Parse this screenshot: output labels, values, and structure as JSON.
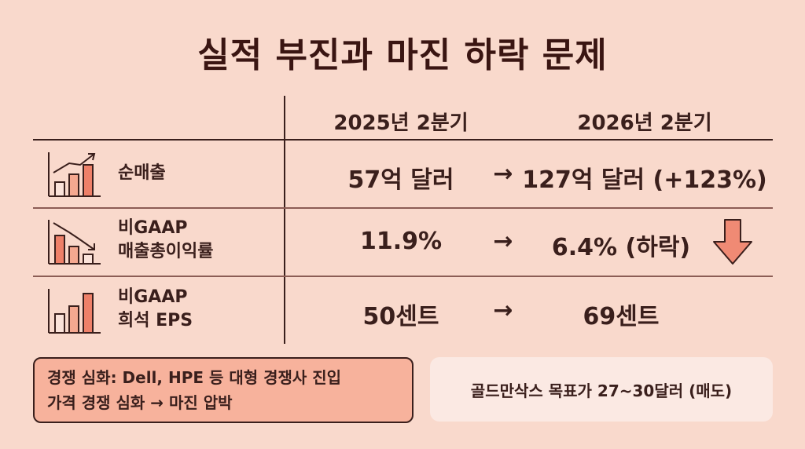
{
  "title": "실적 부진과 마진 하락 문제",
  "columns": {
    "period_1": "2025년 2분기",
    "period_2": "2026년 2분기"
  },
  "rows": [
    {
      "label_line1": "순매출",
      "label_line2": "",
      "icon": "bar-chart-rising-icon",
      "value_old": "57억 달러",
      "arrow": "→",
      "value_new": "127억 달러 (+123%)"
    },
    {
      "label_line1": "비GAAP",
      "label_line2": "매출총이익률",
      "icon": "bar-chart-falling-icon",
      "value_old": "11.9%",
      "arrow": "→",
      "value_new": "6.4% (하락)"
    },
    {
      "label_line1": "비GAAP",
      "label_line2": "희석 EPS",
      "icon": "bar-chart-growth-icon",
      "value_old": "50센트",
      "arrow": "→",
      "value_new": "69센트"
    }
  ],
  "notes": {
    "left_line1": "경쟁 심화: Dell, HPE 등 대형 경쟁사 진입",
    "left_line2": "가격 경쟁 심화 → 마진 압박",
    "right": "골드만삭스 목표가 27~30달러 (매도)"
  },
  "colors": {
    "background": "#f9d9cc",
    "accent": "#f08a74",
    "text": "#3a1f1c",
    "note_box": "#f7b29c"
  }
}
